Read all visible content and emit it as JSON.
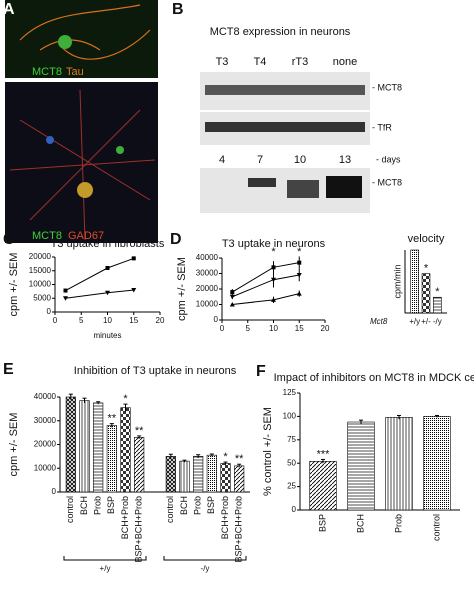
{
  "figure": {
    "panel_labels": [
      "A",
      "B",
      "C",
      "D",
      "E",
      "F"
    ],
    "a": {
      "top": [
        "MCT8",
        "Tau"
      ],
      "bottom": [
        "MCT8",
        "GAD67"
      ]
    },
    "b": {
      "title": "MCT8 expression in neurons",
      "lanes": [
        "T3",
        "T4",
        "rT3",
        "none"
      ],
      "bands": [
        "- MCT8",
        "- TfR"
      ],
      "days": [
        "4",
        "7",
        "10",
        "13"
      ],
      "days_label": "- days",
      "days_band": "- MCT8"
    }
  },
  "chart_data": [
    {
      "type": "line",
      "title": "T3 uptake in fibroblasts",
      "y_label": "cpm +/- SEM",
      "x_label": "minutes",
      "x": [
        2,
        10,
        15
      ],
      "series": [
        {
          "color": "#000",
          "values": [
            7800,
            16000,
            19500
          ]
        },
        {
          "color": "#000",
          "values": [
            5000,
            7000,
            8000
          ]
        }
      ],
      "xlim": [
        0,
        20
      ],
      "xticks": [
        0,
        5,
        10,
        15,
        20
      ],
      "ylim": [
        0,
        20000
      ],
      "yticks": [
        0,
        5000,
        10000,
        15000,
        20000
      ]
    },
    {
      "type": "line",
      "title": "T3 uptake in neurons",
      "y_label": "cpm +/- SEM",
      "x": [
        2,
        10,
        15
      ],
      "series": [
        {
          "color": "#000",
          "values": [
            18000,
            34000,
            37000
          ],
          "errors": [
            2000,
            4000,
            4000
          ]
        },
        {
          "color": "#000",
          "values": [
            15000,
            26000,
            29000
          ],
          "errors": [
            1500,
            5000,
            4000
          ]
        },
        {
          "color": "#000",
          "values": [
            10000,
            13000,
            17000
          ],
          "errors": [
            1000,
            2000,
            2000
          ]
        }
      ],
      "annotations": [
        {
          "text": "*",
          "x": 10
        },
        {
          "text": "*",
          "x": 15
        }
      ],
      "xlim": [
        0,
        20
      ],
      "xticks": [
        0,
        5,
        10,
        15,
        20
      ],
      "ylim": [
        0,
        40000
      ],
      "yticks": [
        0,
        10000,
        20000,
        30000,
        40000
      ]
    },
    {
      "type": "bar",
      "title": "velocity",
      "y_label": "cpm/min",
      "x_label": "Mct8",
      "categories": [
        "+/y",
        "+/-",
        "-/y"
      ],
      "values": [
        2000,
        1250,
        500
      ],
      "marks": [
        null,
        "*",
        "*"
      ],
      "ylim": [
        0,
        2000
      ]
    },
    {
      "type": "bar",
      "title": "Inhibition of T3 uptake in neurons",
      "y_label": "cpm +/- SEM",
      "categories": [
        "control",
        "BCH",
        "Prob",
        "BSP",
        "BCH+Prob",
        "BSP+BCH+Prob",
        "control",
        "BCH",
        "Prob",
        "BSP",
        "BCH+Prob",
        "BSP+BCH+Prob"
      ],
      "values": [
        40000,
        38500,
        37500,
        28000,
        35500,
        23000,
        15000,
        13000,
        15000,
        15500,
        12000,
        11000
      ],
      "errors": [
        1200,
        1000,
        500,
        800,
        1500,
        600,
        900,
        400,
        700,
        500,
        600,
        700
      ],
      "marks": [
        null,
        null,
        null,
        "**",
        "*",
        "**",
        null,
        null,
        null,
        null,
        "*",
        "**"
      ],
      "groups": [
        "+/y",
        "-/y"
      ],
      "ylim": [
        0,
        40000
      ],
      "yticks": [
        0,
        10000,
        20000,
        30000,
        40000
      ]
    },
    {
      "type": "bar",
      "title": "Impact of inhibitors on MCT8 in MDCK cells",
      "y_label": "% control +/- SEM",
      "categories": [
        "BSP",
        "BCH",
        "Prob",
        "control"
      ],
      "values": [
        52,
        94,
        99,
        100
      ],
      "errors": [
        2,
        2,
        2,
        1
      ],
      "marks": [
        "***",
        null,
        null,
        null
      ],
      "ylim": [
        0,
        125
      ],
      "yticks": [
        0,
        25,
        50,
        75,
        100,
        125
      ]
    }
  ]
}
